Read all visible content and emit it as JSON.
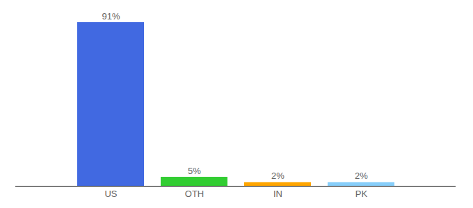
{
  "chart_data": {
    "type": "bar",
    "categories": [
      "US",
      "OTH",
      "IN",
      "PK"
    ],
    "values": [
      91,
      5,
      2,
      2
    ],
    "value_labels": [
      "91%",
      "5%",
      "2%",
      "2%"
    ],
    "colors": [
      "#4169e1",
      "#32cd32",
      "#ffa500",
      "#87cefa"
    ],
    "data_labels": true,
    "tick_labels": "x"
  }
}
